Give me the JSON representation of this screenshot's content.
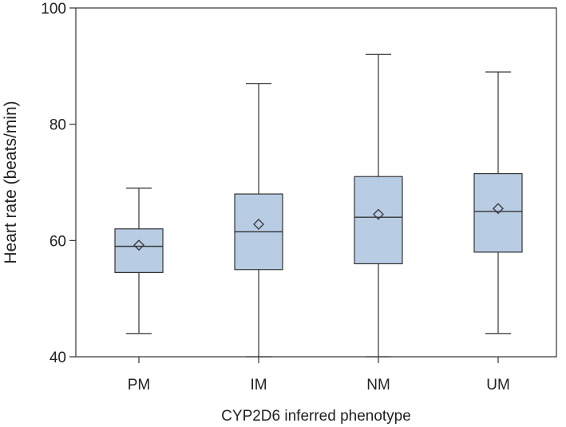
{
  "chart_data": {
    "type": "boxplot",
    "title": "",
    "xlabel": "CYP2D6 inferred phenotype",
    "ylabel": "Heart rate (beats/min)",
    "ylim": [
      40,
      100
    ],
    "yticks": [
      40,
      60,
      80,
      100
    ],
    "grid": false,
    "categories": [
      "PM",
      "IM",
      "NM",
      "UM"
    ],
    "boxes": [
      {
        "category": "PM",
        "whisker_low": 44,
        "q1": 54.5,
        "median": 59,
        "q3": 62,
        "whisker_high": 69,
        "mean": 59.2
      },
      {
        "category": "IM",
        "whisker_low": 40,
        "q1": 55,
        "median": 61.5,
        "q3": 68,
        "whisker_high": 87,
        "mean": 62.8
      },
      {
        "category": "NM",
        "whisker_low": 40,
        "q1": 56,
        "median": 64,
        "q3": 71,
        "whisker_high": 92,
        "mean": 64.5
      },
      {
        "category": "UM",
        "whisker_low": 44,
        "q1": 58,
        "median": 65,
        "q3": 71.5,
        "whisker_high": 89,
        "mean": 65.5
      }
    ],
    "colors": {
      "box_fill": "#b8cce4",
      "stroke": "#333333",
      "frame": "#333333"
    }
  }
}
